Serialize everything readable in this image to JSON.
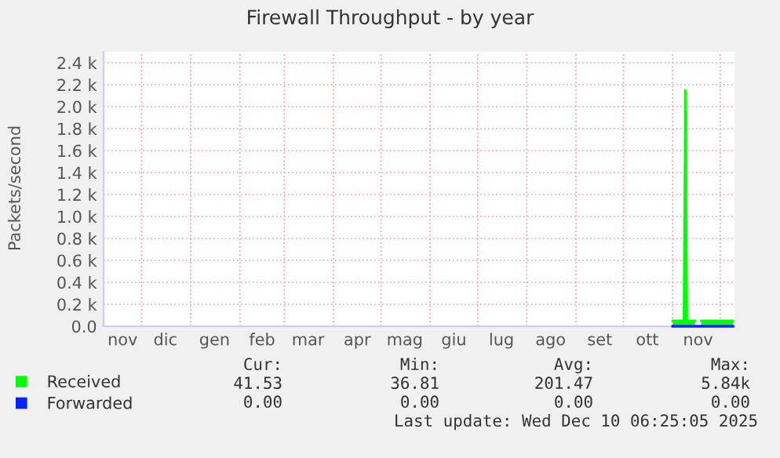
{
  "chart_data": {
    "type": "area",
    "title": "Firewall Throughput - by year",
    "ylabel": "Packets/second",
    "xlim": [
      "2024-11-07",
      "2025-12-10"
    ],
    "xticks": [
      {
        "value": "2024-11-19",
        "label": "nov"
      },
      {
        "value": "2024-12-01",
        "label": null
      },
      {
        "value": "2024-12-16",
        "label": "dic"
      },
      {
        "value": "2025-01-01",
        "label": null
      },
      {
        "value": "2025-01-16",
        "label": "gen"
      },
      {
        "value": "2025-02-01",
        "label": null
      },
      {
        "value": "2025-02-15",
        "label": "feb"
      },
      {
        "value": "2025-03-01",
        "label": null
      },
      {
        "value": "2025-03-16",
        "label": "mar"
      },
      {
        "value": "2025-04-01",
        "label": null
      },
      {
        "value": "2025-04-16",
        "label": "apr"
      },
      {
        "value": "2025-05-01",
        "label": null
      },
      {
        "value": "2025-05-16",
        "label": "mag"
      },
      {
        "value": "2025-06-01",
        "label": null
      },
      {
        "value": "2025-06-16",
        "label": "giu"
      },
      {
        "value": "2025-07-01",
        "label": null
      },
      {
        "value": "2025-07-16",
        "label": "lug"
      },
      {
        "value": "2025-08-01",
        "label": null
      },
      {
        "value": "2025-08-16",
        "label": "ago"
      },
      {
        "value": "2025-09-01",
        "label": null
      },
      {
        "value": "2025-09-16",
        "label": "set"
      },
      {
        "value": "2025-10-01",
        "label": null
      },
      {
        "value": "2025-10-16",
        "label": "ott"
      },
      {
        "value": "2025-11-01",
        "label": null
      },
      {
        "value": "2025-11-17",
        "label": "nov"
      },
      {
        "value": "2025-12-01",
        "label": null
      }
    ],
    "ylim": [
      0,
      2500
    ],
    "yticks": [
      {
        "value": 0,
        "label": "0.0"
      },
      {
        "value": 200,
        "label": "0.2 k"
      },
      {
        "value": 400,
        "label": "0.4 k"
      },
      {
        "value": 600,
        "label": "0.6 k"
      },
      {
        "value": 800,
        "label": "0.8 k"
      },
      {
        "value": 1000,
        "label": "1.0 k"
      },
      {
        "value": 1200,
        "label": "1.2 k"
      },
      {
        "value": 1400,
        "label": "1.4 k"
      },
      {
        "value": 1600,
        "label": "1.6 k"
      },
      {
        "value": 1800,
        "label": "1.8 k"
      },
      {
        "value": 2000,
        "label": "2.0 k"
      },
      {
        "value": 2200,
        "label": "2.2 k"
      },
      {
        "value": 2400,
        "label": "2.4 k"
      }
    ],
    "grid": true,
    "legend": "bottom",
    "series": [
      {
        "name": "Received",
        "color": "#00ff00",
        "x": [
          "2025-11-01",
          "2025-11-08",
          "2025-11-09",
          "2025-11-10",
          "2025-11-15",
          "2025-11-17",
          "2025-11-19",
          "2025-12-09"
        ],
        "values": [
          50,
          50,
          2150,
          50,
          50,
          null,
          50,
          50
        ]
      },
      {
        "name": "Forwarded",
        "type": "line",
        "color": "#0022ff",
        "x": [
          "2025-11-01",
          "2025-12-09"
        ],
        "values": [
          0,
          0
        ]
      }
    ],
    "annotations": [
      "Cur:",
      "Min:",
      "Avg:",
      "Max:",
      "41.53",
      "36.81",
      "201.47",
      "5.84k",
      "0.00",
      "0.00",
      "0.00",
      "0.00",
      "Last update: Wed Dec 10 06:25:05 2025"
    ]
  }
}
